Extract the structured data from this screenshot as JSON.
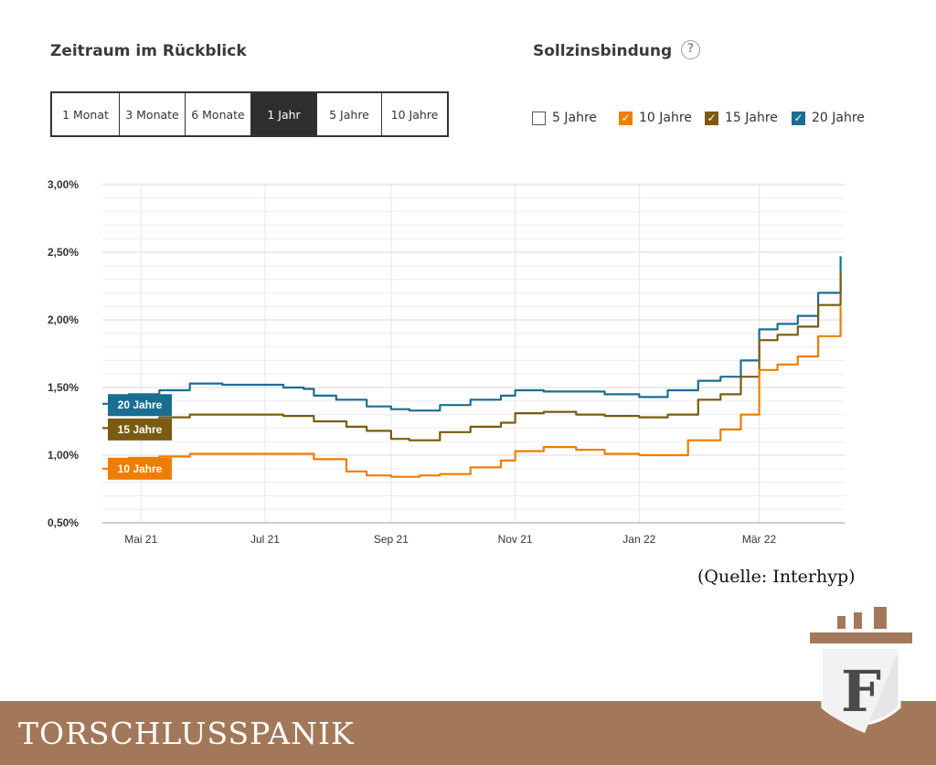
{
  "period": {
    "title": "Zeitraum im Rückblick",
    "options": [
      "1 Monat",
      "3 Monate",
      "6 Monate",
      "1 Jahr",
      "5 Jahre",
      "10 Jahre"
    ],
    "selected": "1 Jahr"
  },
  "fixation": {
    "title": "Sollzinsbindung",
    "help_icon": "question-circle-icon",
    "help_glyph": "?",
    "options": [
      {
        "label": "5 Jahre",
        "checked": false,
        "color": "#555555"
      },
      {
        "label": "10 Jahre",
        "checked": true,
        "color": "#ef7d00"
      },
      {
        "label": "15 Jahre",
        "checked": true,
        "color": "#7a5c10"
      },
      {
        "label": "20 Jahre",
        "checked": true,
        "color": "#1a6e91"
      }
    ]
  },
  "chart_data": {
    "type": "line",
    "x_ticks": [
      "Mai 21",
      "Jul 21",
      "Sep 21",
      "Nov 21",
      "Jan 22",
      "Mär 22"
    ],
    "y_ticks": [
      "3,00%",
      "2,50%",
      "2,00%",
      "1,50%",
      "1,00%",
      "0,50%"
    ],
    "ylim": [
      0.5,
      3.0
    ],
    "xlim": [
      "2021-04-12",
      "2022-04-12"
    ],
    "grid": true,
    "series": [
      {
        "name": "20 Jahre",
        "color": "#1a6e91",
        "values": [
          [
            "2021-04-12",
            1.38
          ],
          [
            "2021-04-25",
            1.45
          ],
          [
            "2021-05-10",
            1.48
          ],
          [
            "2021-05-25",
            1.53
          ],
          [
            "2021-06-10",
            1.52
          ],
          [
            "2021-06-25",
            1.52
          ],
          [
            "2021-07-10",
            1.5
          ],
          [
            "2021-07-20",
            1.49
          ],
          [
            "2021-07-25",
            1.44
          ],
          [
            "2021-08-05",
            1.41
          ],
          [
            "2021-08-20",
            1.36
          ],
          [
            "2021-09-01",
            1.34
          ],
          [
            "2021-09-10",
            1.33
          ],
          [
            "2021-09-25",
            1.37
          ],
          [
            "2021-10-10",
            1.41
          ],
          [
            "2021-10-25",
            1.44
          ],
          [
            "2021-11-01",
            1.48
          ],
          [
            "2021-11-15",
            1.47
          ],
          [
            "2021-12-01",
            1.47
          ],
          [
            "2021-12-15",
            1.45
          ],
          [
            "2022-01-01",
            1.43
          ],
          [
            "2022-01-15",
            1.48
          ],
          [
            "2022-01-30",
            1.55
          ],
          [
            "2022-02-10",
            1.58
          ],
          [
            "2022-02-20",
            1.7
          ],
          [
            "2022-03-01",
            1.93
          ],
          [
            "2022-03-10",
            1.97
          ],
          [
            "2022-03-20",
            2.03
          ],
          [
            "2022-03-30",
            2.2
          ],
          [
            "2022-04-10",
            2.47
          ]
        ]
      },
      {
        "name": "15 Jahre",
        "color": "#7a5c10",
        "values": [
          [
            "2021-04-12",
            1.2
          ],
          [
            "2021-04-25",
            1.26
          ],
          [
            "2021-05-10",
            1.28
          ],
          [
            "2021-05-25",
            1.3
          ],
          [
            "2021-06-10",
            1.3
          ],
          [
            "2021-06-25",
            1.3
          ],
          [
            "2021-07-10",
            1.29
          ],
          [
            "2021-07-25",
            1.25
          ],
          [
            "2021-08-10",
            1.21
          ],
          [
            "2021-08-20",
            1.18
          ],
          [
            "2021-09-01",
            1.12
          ],
          [
            "2021-09-10",
            1.11
          ],
          [
            "2021-09-25",
            1.17
          ],
          [
            "2021-10-10",
            1.21
          ],
          [
            "2021-10-25",
            1.24
          ],
          [
            "2021-11-01",
            1.31
          ],
          [
            "2021-11-15",
            1.32
          ],
          [
            "2021-12-01",
            1.3
          ],
          [
            "2021-12-15",
            1.29
          ],
          [
            "2022-01-01",
            1.28
          ],
          [
            "2022-01-15",
            1.3
          ],
          [
            "2022-01-30",
            1.41
          ],
          [
            "2022-02-10",
            1.45
          ],
          [
            "2022-02-20",
            1.58
          ],
          [
            "2022-03-01",
            1.85
          ],
          [
            "2022-03-10",
            1.89
          ],
          [
            "2022-03-20",
            1.95
          ],
          [
            "2022-03-30",
            2.11
          ],
          [
            "2022-04-10",
            2.35
          ]
        ]
      },
      {
        "name": "10 Jahre",
        "color": "#ef7d00",
        "values": [
          [
            "2021-04-12",
            0.9
          ],
          [
            "2021-04-25",
            0.98
          ],
          [
            "2021-05-10",
            0.99
          ],
          [
            "2021-05-25",
            1.01
          ],
          [
            "2021-06-10",
            1.01
          ],
          [
            "2021-06-25",
            1.01
          ],
          [
            "2021-07-10",
            1.01
          ],
          [
            "2021-07-25",
            0.97
          ],
          [
            "2021-08-10",
            0.88
          ],
          [
            "2021-08-20",
            0.85
          ],
          [
            "2021-09-01",
            0.84
          ],
          [
            "2021-09-15",
            0.85
          ],
          [
            "2021-09-25",
            0.86
          ],
          [
            "2021-10-10",
            0.91
          ],
          [
            "2021-10-25",
            0.96
          ],
          [
            "2021-11-01",
            1.03
          ],
          [
            "2021-11-15",
            1.06
          ],
          [
            "2021-12-01",
            1.04
          ],
          [
            "2021-12-15",
            1.01
          ],
          [
            "2022-01-01",
            1.0
          ],
          [
            "2022-01-15",
            1.0
          ],
          [
            "2022-01-25",
            1.11
          ],
          [
            "2022-02-10",
            1.19
          ],
          [
            "2022-02-20",
            1.3
          ],
          [
            "2022-03-01",
            1.63
          ],
          [
            "2022-03-10",
            1.67
          ],
          [
            "2022-03-20",
            1.73
          ],
          [
            "2022-03-30",
            1.88
          ],
          [
            "2022-04-10",
            2.1
          ]
        ]
      }
    ],
    "end_labels": [
      "20 Jahre",
      "15 Jahre",
      "10 Jahre"
    ]
  },
  "source": "(Quelle: Interhyp)",
  "banner": {
    "text": "TORSCHLUSSPANIK",
    "logo_letter": "F",
    "colors": {
      "bar": "#a3785a",
      "shield": "#e6e6e6",
      "letter": "#4a4a4a"
    }
  }
}
